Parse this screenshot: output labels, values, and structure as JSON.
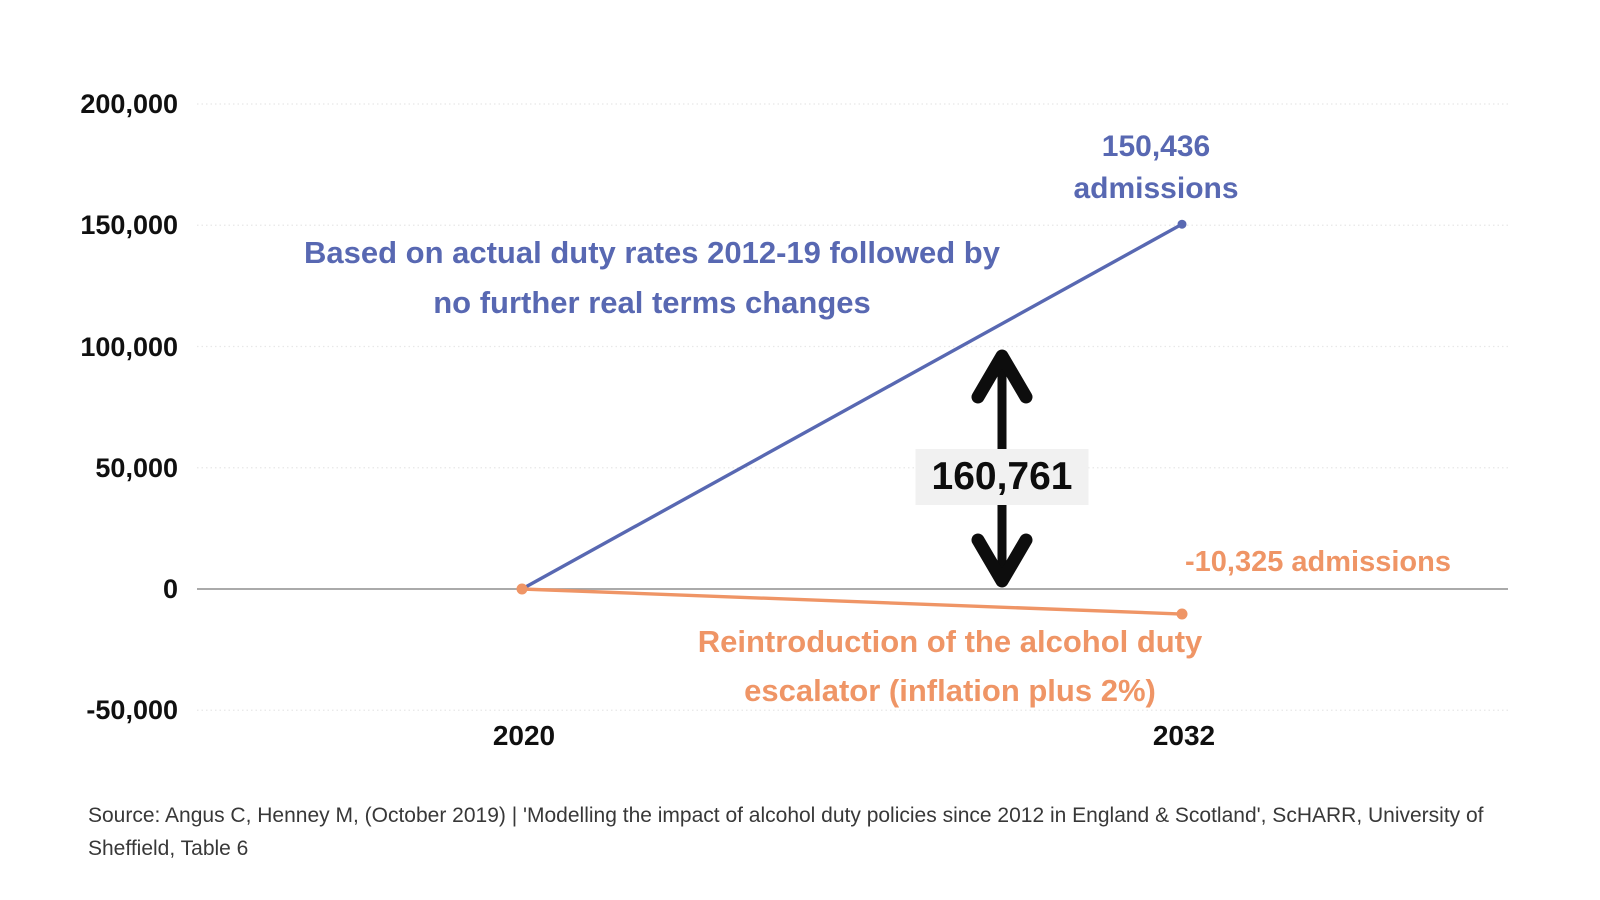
{
  "chart_data": {
    "type": "line",
    "title": "",
    "xlabel": "",
    "ylabel": "",
    "x": [
      2020,
      2032
    ],
    "xtick_labels": [
      "2020",
      "2032"
    ],
    "ylim": [
      -50000,
      200000
    ],
    "ytick_step": 50000,
    "ytick_labels": [
      "200,000",
      "150,000",
      "100,000",
      "50,000",
      "0",
      "-50,000"
    ],
    "grid": "horizontal, light dotted lines with solid zero line",
    "legend_position": "none (inline text captions)",
    "series": [
      {
        "name": "Based on actual duty rates 2012-19 followed by no further real terms changes",
        "color": "#5868b2",
        "values": [
          0,
          150436
        ],
        "end_label": "150,436 admissions"
      },
      {
        "name": "Reintroduction of the alcohol duty escalator (inflation plus 2%)",
        "color": "#ef9566",
        "values": [
          0,
          -10325
        ],
        "end_label": "-10,325 admissions"
      }
    ],
    "gap_annotation": {
      "value": 160761,
      "label": "160,761",
      "description": "black double-headed vertical arrow between the two 2032 endpoints"
    }
  },
  "annotations": {
    "blue_caption": [
      "Based on actual duty rates 2012-19 followed by",
      "no further real terms changes"
    ],
    "blue_end": [
      "150,436",
      "admissions"
    ],
    "orange_caption": [
      "Reintroduction of the alcohol duty",
      "escalator (inflation plus 2%)"
    ],
    "orange_end": "-10,325 admissions",
    "gap": "160,761"
  },
  "source": {
    "lines": [
      "Source: Angus C, Henney M, (October 2019) | 'Modelling the impact of alcohol duty policies since 2012 in England & Scotland', ScHARR, University of",
      "Sheffield, Table 6"
    ]
  },
  "colors": {
    "blue_series": "#5868b2",
    "orange_series": "#ef9566",
    "grid": "#e8e8e8",
    "zero_line": "#9e9e9e",
    "arrow": "#0d0d0d",
    "gap_box_bg": "#f1f1f1",
    "axis_text": "#101010",
    "source_text": "#383838"
  }
}
